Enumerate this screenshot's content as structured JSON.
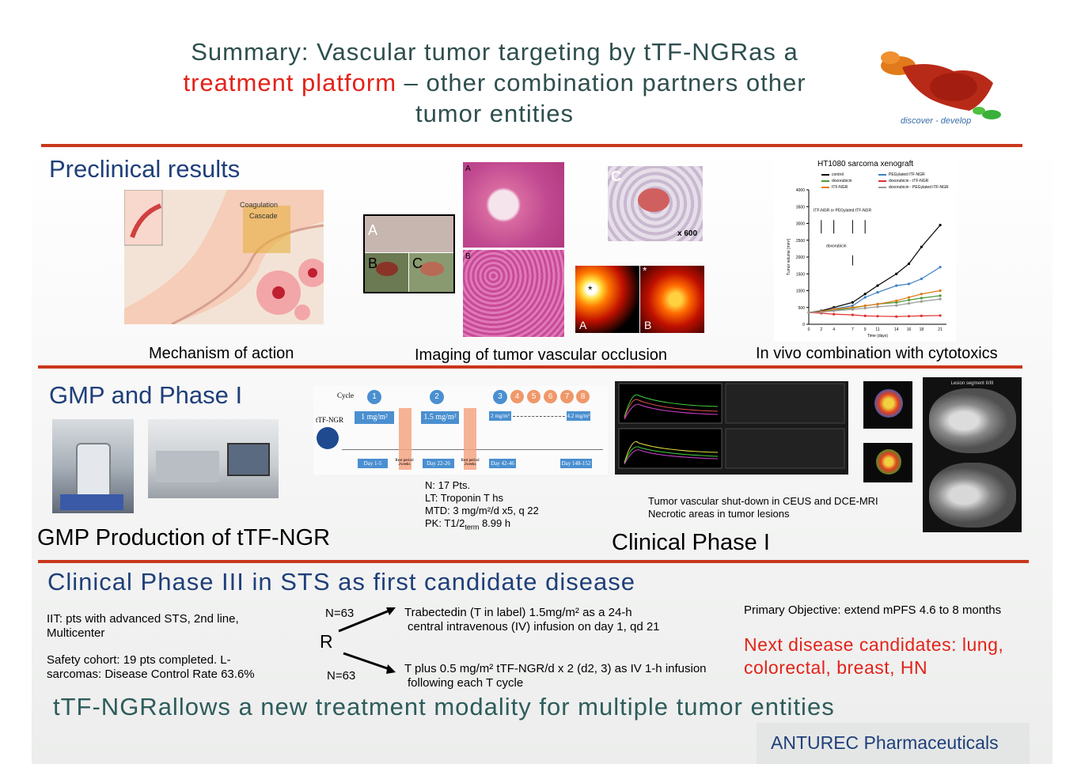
{
  "title": {
    "line1": "Summary: Vascular tumor targeting by tTF-NGRas a",
    "line2_red": "treatment platform",
    "line2_rest": " – other combination partners other",
    "line3": "tumor entities"
  },
  "logo": {
    "tagline": "discover - develop"
  },
  "preclinical": {
    "heading": "Preclinical results",
    "cap_mechanism": "Mechanism of action",
    "cap_imaging": "Imaging of tumor vascular occlusion",
    "cap_invivo": "In vivo combination with cytotoxics",
    "mech_label1": "Coagulation",
    "mech_label2": "Cascade",
    "photo_labels": [
      "A",
      "B",
      "C"
    ],
    "histo_labels": [
      "A",
      "B"
    ],
    "histo_c_label": "C",
    "histo_c_mag": "x 600",
    "heat_labels": [
      "A",
      "B"
    ],
    "heat_star": "*"
  },
  "chart_data": {
    "type": "line",
    "title": "HT1080 sarcoma xenograft",
    "xlabel": "Time (days)",
    "ylabel": "Tumor volume [mm³]",
    "x": [
      0,
      2,
      4,
      7,
      9,
      11,
      14,
      16,
      18,
      21
    ],
    "ylim": [
      0,
      4000
    ],
    "yticks": [
      0,
      500,
      1000,
      1500,
      2000,
      2500,
      3000,
      3500,
      4000
    ],
    "annot_ttf": "tTF-NGR or PEGylated tTF-NGR",
    "annot_doxo": "doxorubicin",
    "series": [
      {
        "name": "control",
        "color": "#000000",
        "values": [
          350,
          400,
          500,
          650,
          900,
          1150,
          1500,
          1800,
          2300,
          2950
        ]
      },
      {
        "name": "PEGylated tTF-NGR",
        "color": "#3b7fc4",
        "values": [
          350,
          380,
          460,
          550,
          800,
          950,
          1150,
          1200,
          1350,
          1700
        ]
      },
      {
        "name": "doxorubicin",
        "color": "#4b9a3a",
        "values": [
          350,
          370,
          420,
          480,
          550,
          600,
          650,
          720,
          780,
          850
        ]
      },
      {
        "name": "doxorubicin - tTF-NGR",
        "color": "#e03030",
        "values": [
          350,
          330,
          300,
          280,
          250,
          240,
          230,
          240,
          250,
          260
        ]
      },
      {
        "name": "tTF-NGR",
        "color": "#e07a1a",
        "values": [
          350,
          380,
          450,
          500,
          550,
          600,
          700,
          800,
          900,
          1000
        ]
      },
      {
        "name": "doxorubicin - PEGylated tTF-NGR",
        "color": "#999999",
        "values": [
          350,
          360,
          400,
          440,
          480,
          520,
          560,
          620,
          680,
          750
        ]
      }
    ]
  },
  "gmp": {
    "heading": "GMP and Phase I",
    "production_caption": "GMP Production of tTF-NGR",
    "clinical_caption": "Clinical Phase I",
    "cycle_label": "Cycle",
    "drug_label": "tTF-NGR",
    "cycles": [
      "1",
      "2",
      "3",
      "4",
      "5",
      "6",
      "7",
      "8"
    ],
    "dose1": "1 mg/m²",
    "dose2": "1.5 mg/m²",
    "dose3": "2 mg/m²",
    "dose4": "4.2 mg/m²",
    "day1": "Day 1-5",
    "day2": "Day 22-26",
    "day3": "Day 42-46",
    "day4": "Day 148-152",
    "rest": "Rest period 2weeks",
    "stats": {
      "n": "N: 17 Pts.",
      "lt": "LT: Troponin T hs",
      "mtd": "MTD: 3 mg/m²/d x5, q 22",
      "pk_a": "PK: T1/2",
      "pk_sub": "term",
      "pk_b": " 8.99 h"
    },
    "ceus_line1": "Tumor vascular shut-down in CEUS and DCE-MRI",
    "ceus_line2": "Necrotic areas in tumor lesions",
    "mri_label": "Lesion segment II/III"
  },
  "phase3": {
    "heading": "Clinical Phase III in STS as first candidate disease",
    "iit": "IIT: pts with advanced STS, 2nd line, Multicenter",
    "safety": "Safety cohort: 19 pts completed. L-sarcomas: Disease Control Rate 63.6%",
    "n_top": "N=63",
    "n_bottom": "N=63",
    "r_label": "R",
    "arm1_line1": "Trabectedin (T in label) 1.5mg/m² as a 24-h",
    "arm1_line2": "central intravenous (IV) infusion on day 1, qd 21",
    "arm2_line1": "T plus 0.5 mg/m² tTF-NGR/d x 2 (d2, 3) as IV 1-h infusion",
    "arm2_line2": "following each T cycle",
    "objective": "Primary Objective: extend mPFS 4.6 to 8 months",
    "next": "Next disease candidates: lung, colorectal, breast, HN"
  },
  "footer": {
    "statement": "tTF-NGRallows a new treatment modality for multiple tumor entities",
    "company": "ANTUREC Pharmaceuticals"
  },
  "colors": {
    "accent_red": "#e32219",
    "rule": "#c9381c",
    "heading_blue": "#1f3f7a",
    "teal": "#2e5c5c"
  }
}
